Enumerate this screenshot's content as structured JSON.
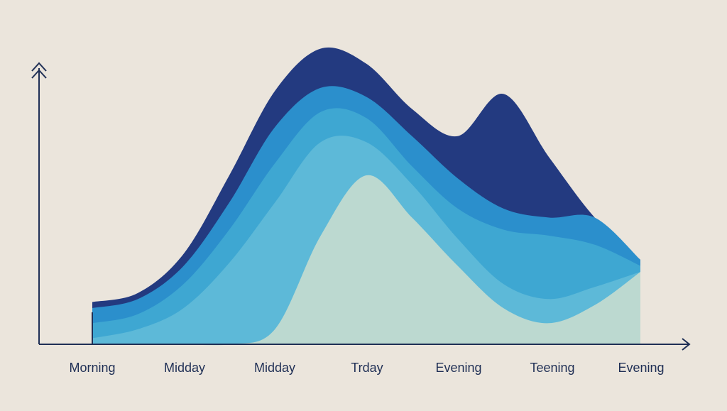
{
  "chart_data": {
    "type": "area",
    "title": "",
    "xlabel": "",
    "ylabel": "",
    "categories": [
      "Morning",
      "Midday",
      "Midday",
      "Trday",
      "Evening",
      "Teening",
      "Evening"
    ],
    "x_range": [
      0,
      6
    ],
    "ylim": [
      0,
      1
    ],
    "grid": false,
    "legend": "none",
    "series": [
      {
        "color": "#233a80",
        "x": [
          0,
          0.5,
          1,
          1.5,
          2,
          2.5,
          3,
          3.5,
          4,
          4.5,
          5,
          5.5,
          6
        ],
        "values": [
          0.14,
          0.17,
          0.3,
          0.56,
          0.84,
          0.98,
          0.93,
          0.78,
          0.69,
          0.83,
          0.62,
          0.42,
          0.28
        ]
      },
      {
        "color": "#2b8fcc",
        "x": [
          0,
          0.5,
          1,
          1.5,
          2,
          2.5,
          3,
          3.5,
          4,
          4.5,
          5,
          5.5,
          6
        ],
        "values": [
          0.12,
          0.15,
          0.26,
          0.47,
          0.72,
          0.85,
          0.82,
          0.69,
          0.55,
          0.45,
          0.42,
          0.42,
          0.28
        ]
      },
      {
        "color": "#3ea7d2",
        "x": [
          0,
          0.5,
          1,
          1.5,
          2,
          2.5,
          3,
          3.5,
          4,
          4.5,
          5,
          5.5,
          6
        ],
        "values": [
          0.07,
          0.1,
          0.2,
          0.38,
          0.6,
          0.77,
          0.75,
          0.59,
          0.45,
          0.38,
          0.36,
          0.33,
          0.26
        ]
      },
      {
        "color": "#5db9d8",
        "x": [
          0,
          0.5,
          1,
          1.5,
          2,
          2.5,
          3,
          3.5,
          4,
          4.5,
          5,
          5.5,
          6
        ],
        "values": [
          0.02,
          0.05,
          0.12,
          0.27,
          0.47,
          0.67,
          0.67,
          0.53,
          0.35,
          0.2,
          0.15,
          0.19,
          0.24
        ]
      },
      {
        "color": "#bcd9d0",
        "x": [
          0,
          0.5,
          1,
          1.5,
          2,
          2.5,
          3,
          3.5,
          4,
          4.5,
          5,
          5.5,
          6
        ],
        "values": [
          0.0,
          0.0,
          0.0,
          0.0,
          0.05,
          0.36,
          0.56,
          0.42,
          0.26,
          0.12,
          0.07,
          0.13,
          0.24
        ]
      }
    ]
  }
}
